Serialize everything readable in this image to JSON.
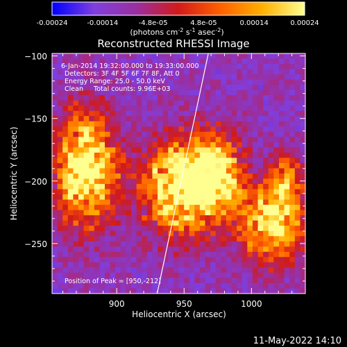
{
  "chart_data": {
    "type": "heatmap",
    "title": "Reconstructed RHESSI Image",
    "xlabel": "Heliocentric X (arcsec)",
    "ylabel": "Heliocentric Y (arcsec)",
    "xlim": [
      852,
      1040
    ],
    "ylim": [
      -290,
      -98
    ],
    "x_ticks": [
      900,
      950,
      1000
    ],
    "y_ticks": [
      -100,
      -150,
      -200,
      -250
    ],
    "colorbar": {
      "range": [
        -0.00024,
        0.00024
      ],
      "ticks": [
        "-0.00024",
        "-0.00014",
        "-4.8e-05",
        "4.8e-05",
        "0.00014",
        "0.00024"
      ],
      "unit_label": "(photons cm-2 s-1 asec-2)",
      "colormap": [
        "#0000ff",
        "#7f3fdf",
        "#9a2fa0",
        "#d11a1a",
        "#ff6000",
        "#ffb000",
        "#ffff90"
      ]
    },
    "annotations": [
      "6-Jan-2014 19:32:00.000 to 19:33:00.000",
      "Detectors: 3F 4F 5F 6F 7F 8F, Att 0",
      "Energy Range: 25.0 - 50.0 keV",
      "Clean     Total counts: 9.96E+03"
    ],
    "peak_text": "Position of Peak = [950,-212]",
    "peak": [
      950,
      -212
    ],
    "limb_line": [
      [
        930,
        -290
      ],
      [
        968,
        -98
      ]
    ],
    "sources": [
      {
        "x": 877,
        "y": -190,
        "amp": 1.0,
        "sx": 15,
        "sy": 30
      },
      {
        "x": 948,
        "y": -205,
        "amp": 1.0,
        "sx": 20,
        "sy": 25
      },
      {
        "x": 975,
        "y": -195,
        "amp": 0.7,
        "sx": 14,
        "sy": 22
      },
      {
        "x": 1015,
        "y": -235,
        "amp": 0.85,
        "sx": 16,
        "sy": 20
      },
      {
        "x": 1025,
        "y": -200,
        "amp": 0.55,
        "sx": 8,
        "sy": 15
      }
    ]
  },
  "footer": {
    "timestamp": "11-May-2022 14:10"
  }
}
